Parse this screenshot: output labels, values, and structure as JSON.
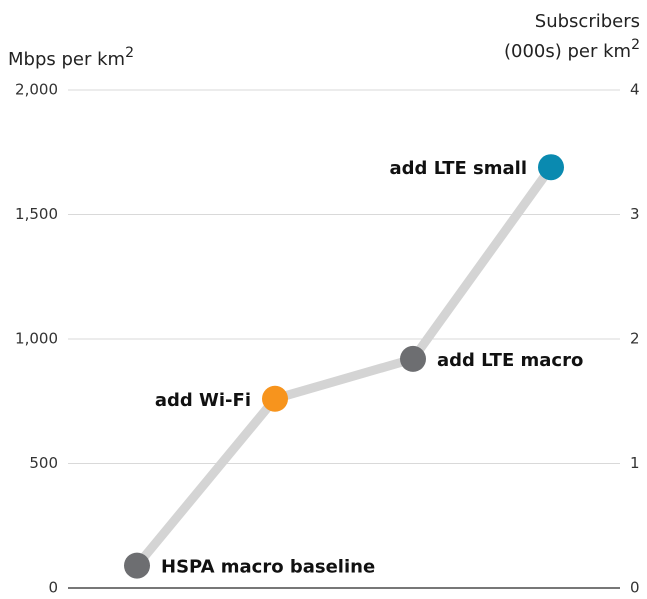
{
  "chart_data": {
    "type": "line",
    "ylabel": "Mbps per km",
    "ylabel_sup": "2",
    "y2label": [
      "Subscribers",
      "(000s) per km"
    ],
    "y2label_sup": "2",
    "categories": [
      "HSPA macro baseline",
      "add Wi-Fi",
      "add LTE macro",
      "add LTE small"
    ],
    "series": [
      {
        "name": "Mbps per km2",
        "color": "#d4d4d4",
        "values": [
          90,
          760,
          920,
          1690
        ],
        "point_colors": [
          "#6d6e71",
          "#f7941d",
          "#6d6e71",
          "#0a8ab0"
        ]
      }
    ],
    "ylim": [
      0,
      2000
    ],
    "yticks": [
      0,
      500,
      {
        "value": 1000,
        "label": "1,000"
      },
      {
        "value": 1500,
        "label": "1,500"
      },
      {
        "value": 2000,
        "label": "2,000"
      }
    ],
    "y2lim": [
      0,
      4
    ],
    "y2ticks": [
      0,
      1,
      2,
      3,
      4
    ],
    "grid": true
  }
}
